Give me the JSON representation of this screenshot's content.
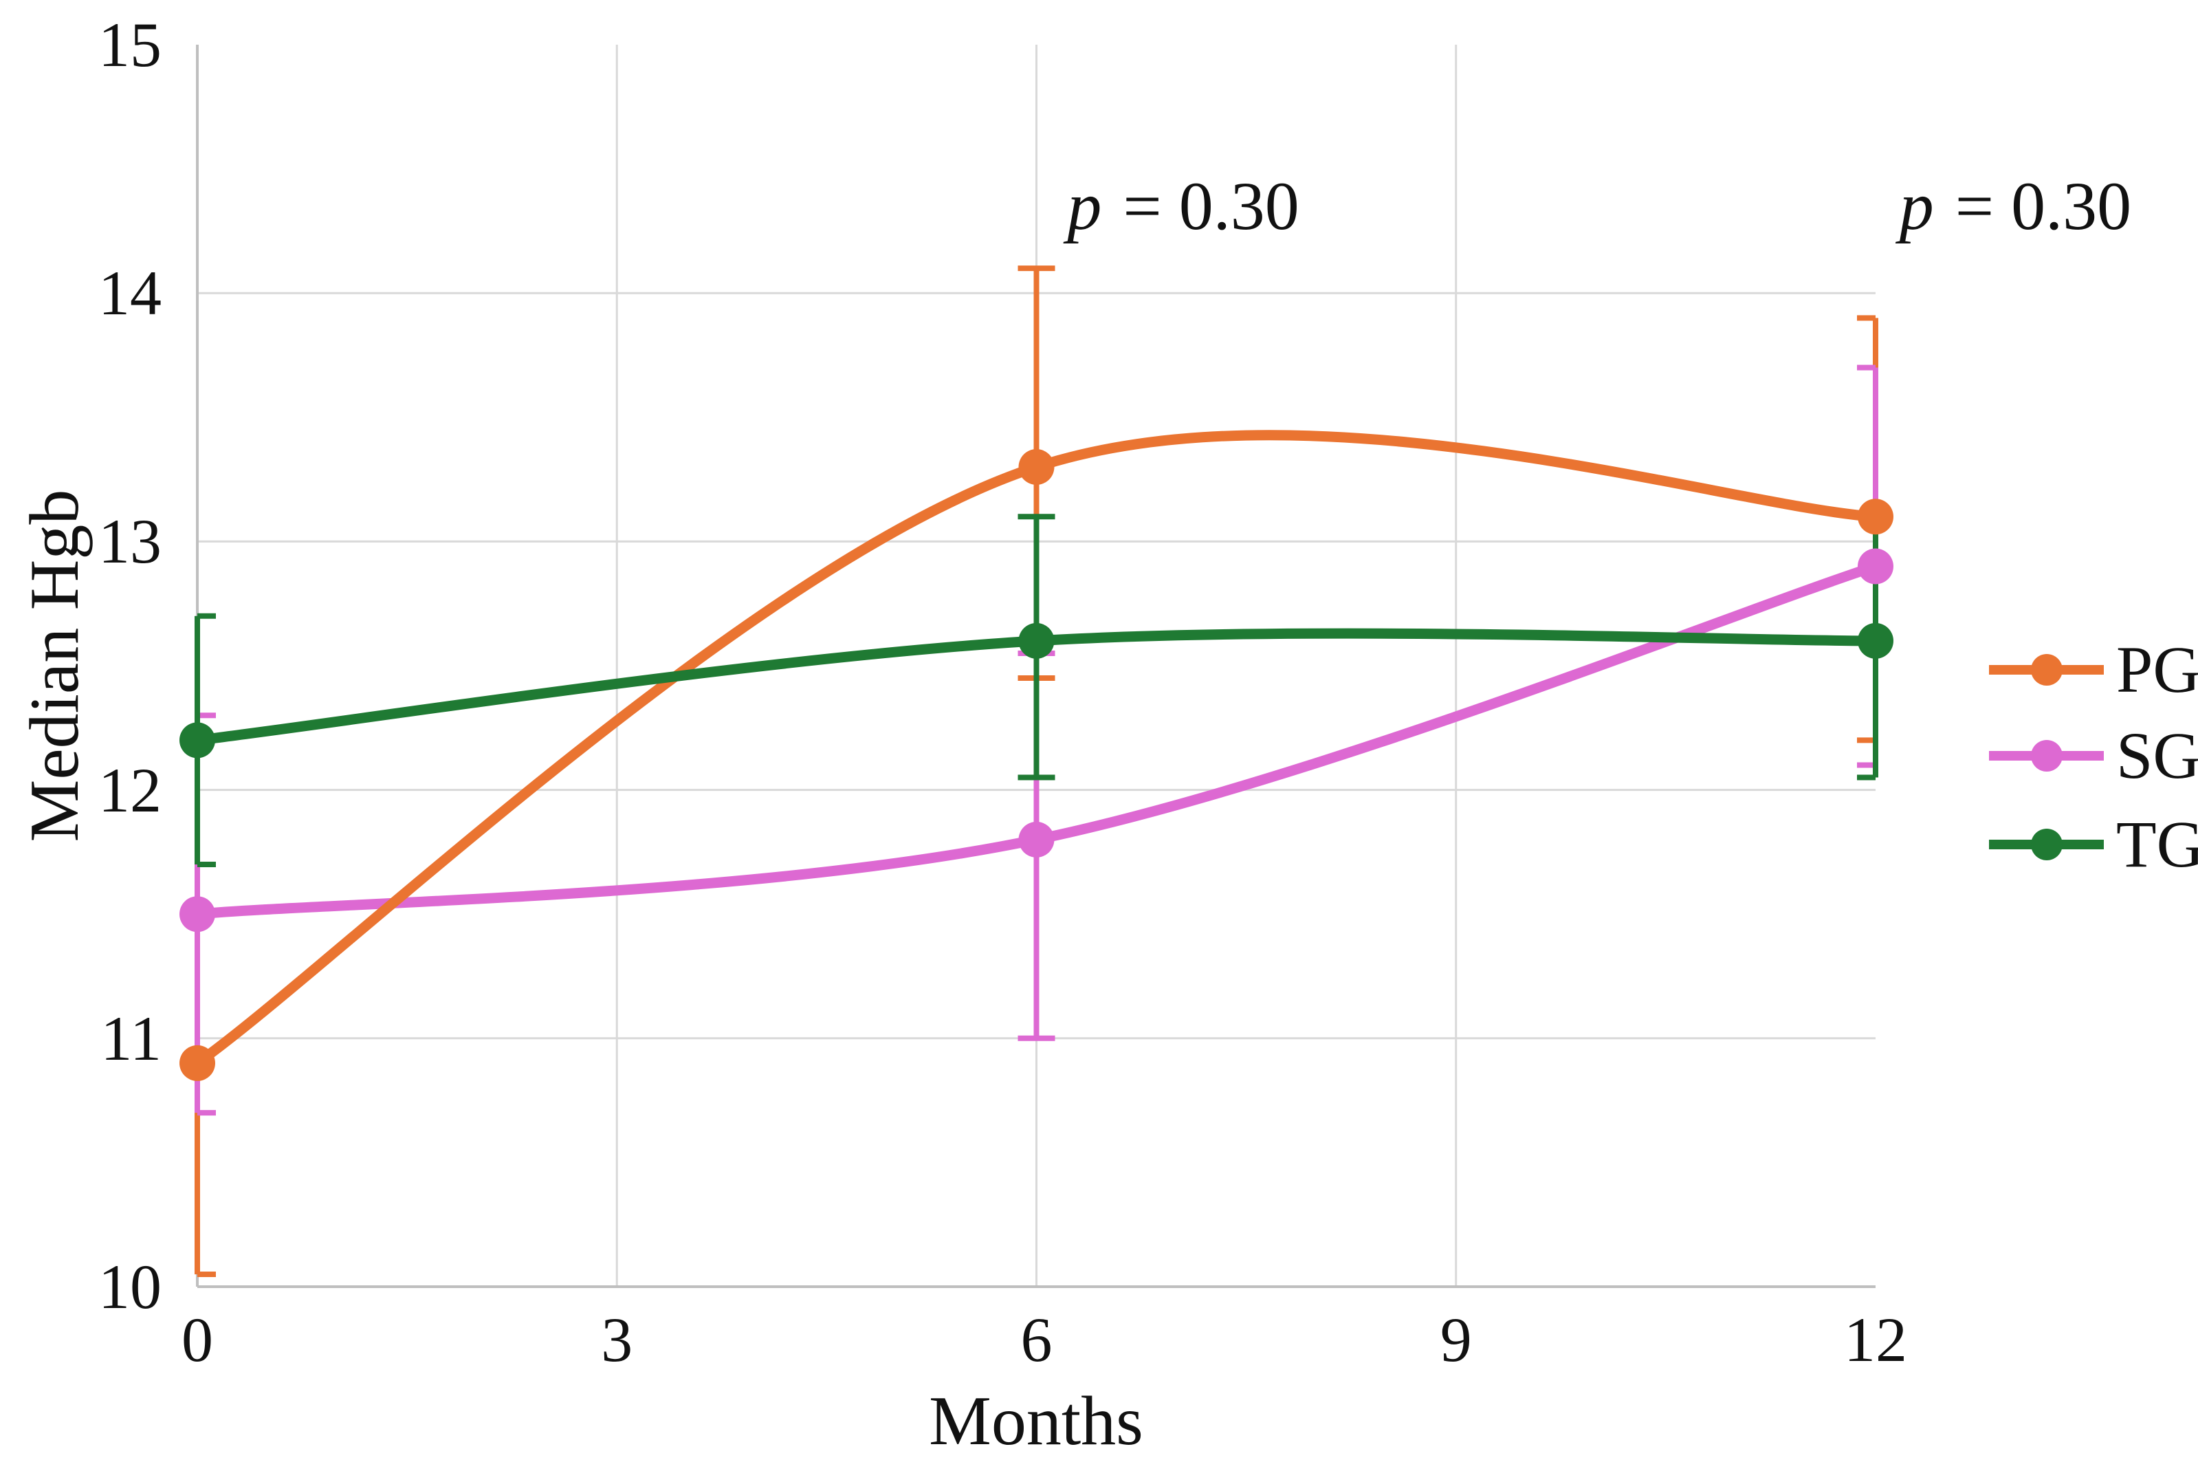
{
  "chart_data": {
    "type": "line",
    "title": "",
    "xlabel": "Months",
    "ylabel": "Median Hgb",
    "xlim": [
      0,
      12
    ],
    "ylim": [
      10,
      15
    ],
    "x_ticks": [
      0,
      3,
      6,
      9,
      12
    ],
    "y_ticks": [
      10,
      11,
      12,
      13,
      14,
      15
    ],
    "grid": {
      "horizontal_at_values": [
        11,
        12,
        13,
        14
      ],
      "vertical_at_months": [
        3,
        6,
        9
      ]
    },
    "legend_position": "right",
    "series": [
      {
        "name": "PG",
        "color": "#EA7431",
        "x": [
          0,
          6,
          12
        ],
        "values": [
          10.9,
          13.3,
          13.1
        ],
        "error_low": [
          10.05,
          12.45,
          12.2
        ],
        "error_high": [
          11.7,
          14.1,
          13.9
        ]
      },
      {
        "name": "SG",
        "color": "#DD69D2",
        "x": [
          0,
          6,
          12
        ],
        "values": [
          11.5,
          11.8,
          12.9
        ],
        "error_low": [
          10.7,
          11.0,
          12.1
        ],
        "error_high": [
          12.3,
          12.55,
          13.7
        ]
      },
      {
        "name": "TG",
        "color": "#1F7A33",
        "x": [
          0,
          6,
          12
        ],
        "values": [
          12.2,
          12.6,
          12.6
        ],
        "error_low": [
          11.7,
          12.05,
          12.05
        ],
        "error_high": [
          12.7,
          13.1,
          13.1
        ]
      }
    ],
    "annotations": [
      {
        "text": "p = 0.30",
        "x_month": 7.05,
        "y_value": 14.35
      },
      {
        "text": "p = 0.30",
        "x_month": 13.0,
        "y_value": 14.35
      }
    ]
  },
  "colors": {
    "background": "#FFFFFF",
    "gridline": "#D9D9D9",
    "axis_line": "#BFBFBF",
    "text": "#111111"
  }
}
